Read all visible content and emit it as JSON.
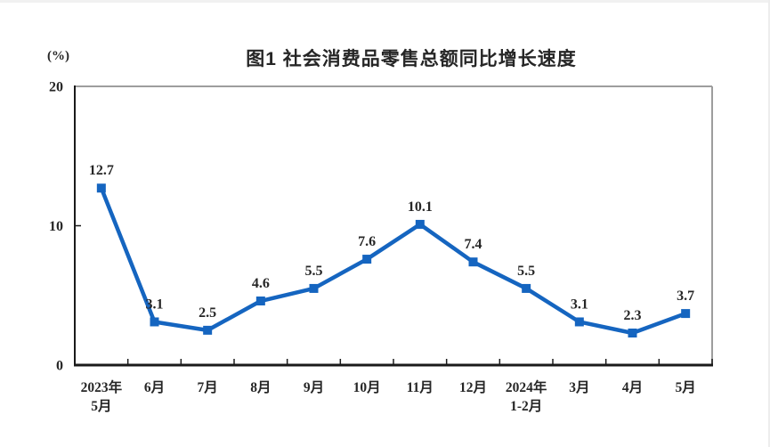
{
  "page": {
    "unit_label": "(%)"
  },
  "chart_data": {
    "type": "line",
    "title": "图1  社会消费品零售总额同比增长速度",
    "unit": "(%)",
    "categories": [
      "2023年\n5月",
      "6月",
      "7月",
      "8月",
      "9月",
      "10月",
      "11月",
      "12月",
      "2024年\n1-2月",
      "3月",
      "4月",
      "5月"
    ],
    "values": [
      12.7,
      3.1,
      2.5,
      4.6,
      5.5,
      7.6,
      10.1,
      7.4,
      5.5,
      3.1,
      2.3,
      3.7
    ],
    "ylim": [
      0,
      20
    ],
    "yticks": [
      0,
      10,
      20
    ],
    "grid": false,
    "legend": "none",
    "marker": "square",
    "line_color": "#1565C0",
    "marker_color": "#1565C0",
    "label_color": "#262626",
    "axis_color": "#1a1a1a",
    "border_color": "#9d9d9d"
  }
}
